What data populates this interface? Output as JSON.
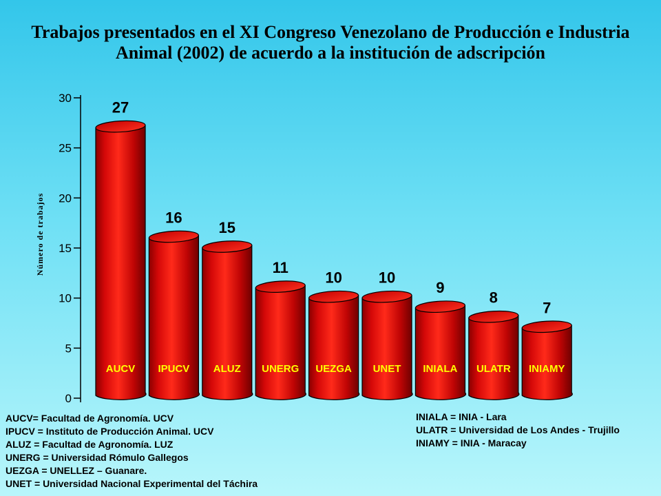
{
  "title": {
    "line1": "Trabajos presentados en el XI Congreso Venezolano de Producción e Industria",
    "line2": "Animal (2002) de acuerdo a la institución de adscripción"
  },
  "chart_data": {
    "type": "bar",
    "title": "Trabajos presentados en el XI Congreso Venezolano de Producción e Industria Animal (2002) de acuerdo a la institución de adscripción",
    "xlabel": "",
    "ylabel": "Número de trabajos",
    "ylim": [
      0,
      30
    ],
    "yticks": [
      0,
      5,
      10,
      15,
      20,
      25,
      30
    ],
    "categories": [
      "AUCV",
      "IPUCV",
      "ALUZ",
      "UNERG",
      "UEZGA",
      "UNET",
      "INIALA",
      "ULATR",
      "INIAMY"
    ],
    "values": [
      27,
      16,
      15,
      11,
      10,
      10,
      9,
      8,
      7
    ],
    "grid": false,
    "legend": "none",
    "bar_color": "#e01010"
  },
  "legend_left": [
    "AUCV= Facultad de Agronomía. UCV",
    "IPUCV = Instituto de Producción Animal. UCV",
    "ALUZ = Facultad de Agronomía.  LUZ",
    "UNERG = Universidad Rómulo Gallegos",
    "UEZGA = UNELLEZ – Guanare.",
    "UNET = Universidad Nacional Experimental del Táchira"
  ],
  "legend_right": [
    "INIALA = INIA - Lara",
    "ULATR = Universidad de Los Andes -  Trujillo",
    "INIAMY = INIA - Maracay"
  ]
}
